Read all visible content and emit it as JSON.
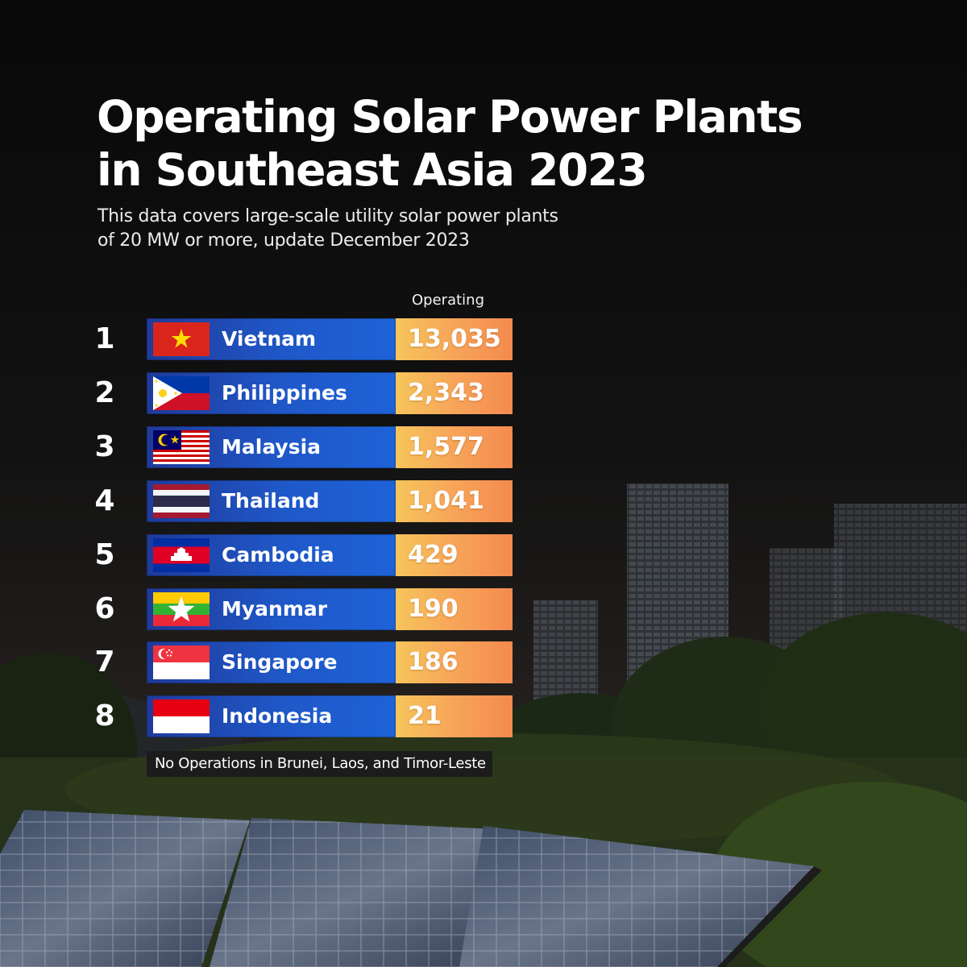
{
  "title_line1": "Operating Solar Power Plants",
  "title_line2": "in Southeast Asia 2023",
  "subtitle_line1": "This data covers large-scale utility solar power plants",
  "subtitle_line2": "of 20 MW or more, update December 2023",
  "column_header": "Operating",
  "footnote": "No Operations in Brunei, Laos, and Timor-Leste",
  "colors": {
    "bar_blue": "#1f58c8",
    "value_orange_start": "#f6c55a",
    "value_orange_end": "#f48a4f",
    "background": "#0d0d0d"
  },
  "chart_data": {
    "type": "table",
    "columns": [
      "",
      "",
      "Operating"
    ],
    "rows": [
      {
        "rank": "1",
        "country": "Vietnam",
        "flag": "vietnam-flag",
        "value": 13035,
        "value_label": "13,035"
      },
      {
        "rank": "2",
        "country": "Philippines",
        "flag": "philippines-flag",
        "value": 2343,
        "value_label": "2,343"
      },
      {
        "rank": "3",
        "country": "Malaysia",
        "flag": "malaysia-flag",
        "value": 1577,
        "value_label": "1,577"
      },
      {
        "rank": "4",
        "country": "Thailand",
        "flag": "thailand-flag",
        "value": 1041,
        "value_label": "1,041"
      },
      {
        "rank": "5",
        "country": "Cambodia",
        "flag": "cambodia-flag",
        "value": 429,
        "value_label": "429"
      },
      {
        "rank": "6",
        "country": "Myanmar",
        "flag": "myanmar-flag",
        "value": 190,
        "value_label": "190"
      },
      {
        "rank": "7",
        "country": "Singapore",
        "flag": "singapore-flag",
        "value": 186,
        "value_label": "186"
      },
      {
        "rank": "8",
        "country": "Indonesia",
        "flag": "indonesia-flag",
        "value": 21,
        "value_label": "21"
      }
    ]
  }
}
